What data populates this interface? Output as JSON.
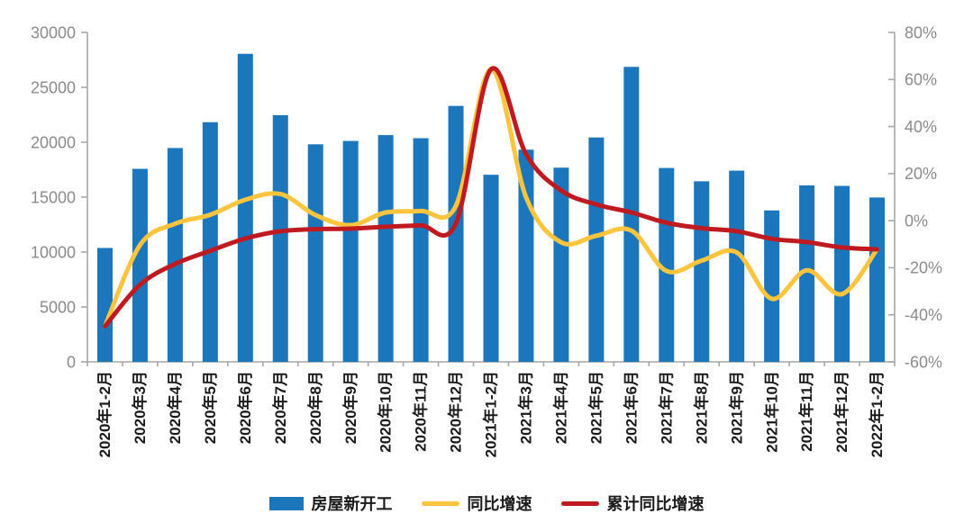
{
  "chart_data": {
    "type": "bar-line-combo",
    "title": "",
    "xlabel": "",
    "ylabel_left": "",
    "ylabel_right": "",
    "grid": false,
    "legend_position": "bottom",
    "categories": [
      "2020年1-2月",
      "2020年3月",
      "2020年4月",
      "2020年5月",
      "2020年6月",
      "2020年7月",
      "2020年8月",
      "2020年9月",
      "2020年10月",
      "2020年11月",
      "2020年12月",
      "2021年1-2月",
      "2021年3月",
      "2021年4月",
      "2021年5月",
      "2021年6月",
      "2021年7月",
      "2021年8月",
      "2021年9月",
      "2021年10月",
      "2021年11月",
      "2021年12月",
      "2022年1-2月"
    ],
    "series": [
      {
        "name": "房屋新开工",
        "type": "bar",
        "axis": "left",
        "color": "#1C76BC",
        "values": [
          10370,
          17577,
          19472,
          21824,
          28050,
          22460,
          19811,
          20117,
          20648,
          20366,
          23307,
          17037,
          19324,
          17683,
          20434,
          26863,
          17653,
          16445,
          17412,
          13792,
          16069,
          16022,
          14967
        ]
      },
      {
        "name": "同比增速",
        "type": "line",
        "axis": "right",
        "color": "#FFC43D",
        "unit": "%",
        "values": [
          -44.9,
          -10.4,
          -1.3,
          2.5,
          8.9,
          11.3,
          2.4,
          -1.9,
          3.5,
          4.1,
          6.3,
          64.3,
          9.9,
          -9.2,
          -6.4,
          -4.2,
          -21.4,
          -17.0,
          -13.5,
          -33.2,
          -21.1,
          -31.2,
          -12.2
        ]
      },
      {
        "name": "累计同比增速",
        "type": "line",
        "axis": "right",
        "color": "#BF1A20",
        "unit": "%",
        "values": [
          -44.9,
          -27.2,
          -18.4,
          -12.8,
          -7.6,
          -4.5,
          -3.6,
          -3.4,
          -2.6,
          -2.0,
          -1.2,
          64.3,
          28.2,
          12.8,
          6.9,
          3.5,
          -0.9,
          -3.2,
          -4.5,
          -7.7,
          -9.1,
          -11.4,
          -12.2
        ]
      }
    ],
    "left_axis": {
      "min": 0,
      "max": 30000,
      "step": 5000,
      "tick_values": [
        0,
        5000,
        10000,
        15000,
        20000,
        25000,
        30000
      ],
      "tick_labels": [
        "0",
        "5000",
        "10000",
        "15000",
        "20000",
        "25000",
        "30000"
      ]
    },
    "right_axis": {
      "min": -60,
      "max": 80,
      "step": 20,
      "tick_values": [
        -60,
        -40,
        -20,
        0,
        20,
        40,
        60,
        80
      ],
      "tick_labels": [
        "-60%",
        "-40%",
        "-20%",
        "0%",
        "20%",
        "40%",
        "60%",
        "80%"
      ]
    },
    "axis_color": "#A6A6A6",
    "tick_label_color": "#8A8A8A",
    "category_label_color": "#1A1A1A",
    "background_color": "#FFFFFF"
  }
}
